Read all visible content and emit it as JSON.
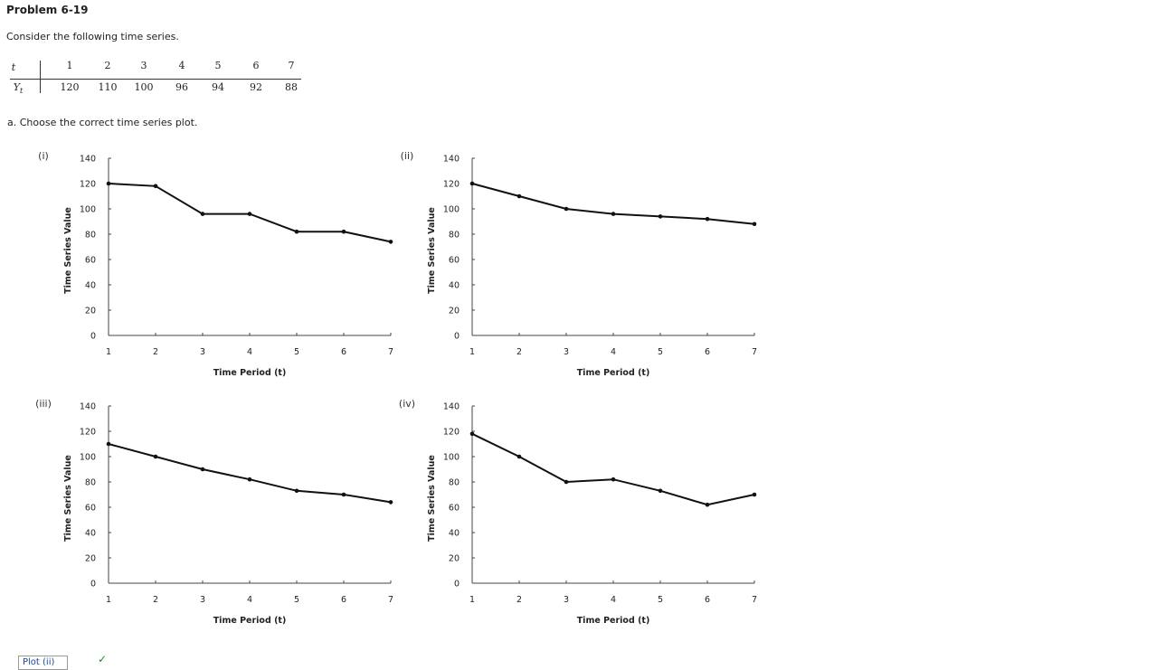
{
  "problem": {
    "title": "Problem 6-19",
    "intro": "Consider the following time series.",
    "question": "a. Choose the correct time series plot."
  },
  "table": {
    "row_t_label": "t",
    "row_y_label": "Y",
    "row_y_subscript": "t",
    "t": [
      "1",
      "2",
      "3",
      "4",
      "5",
      "6",
      "7"
    ],
    "y": [
      "120",
      "110",
      "100",
      "96",
      "94",
      "92",
      "88"
    ]
  },
  "answer": {
    "selected": "Plot (ii)",
    "check_icon": "check-icon"
  },
  "chart_data": [
    {
      "type": "line",
      "label": "(i)",
      "x": [
        1,
        2,
        3,
        4,
        5,
        6,
        7
      ],
      "y": [
        120,
        118,
        96,
        96,
        82,
        82,
        74
      ],
      "xlabel": "Time Period (t)",
      "ylabel": "Time Series Value",
      "xticks": [
        "1",
        "2",
        "3",
        "4",
        "5",
        "6",
        "7"
      ],
      "yticks": [
        "0",
        "20",
        "40",
        "60",
        "80",
        "100",
        "120",
        "140"
      ],
      "ylim": [
        0,
        140
      ],
      "grid": false
    },
    {
      "type": "line",
      "label": "(ii)",
      "x": [
        1,
        2,
        3,
        4,
        5,
        6,
        7
      ],
      "y": [
        120,
        110,
        100,
        96,
        94,
        92,
        88
      ],
      "xlabel": "Time Period (t)",
      "ylabel": "Time Series Value",
      "xticks": [
        "1",
        "2",
        "3",
        "4",
        "5",
        "6",
        "7"
      ],
      "yticks": [
        "0",
        "20",
        "40",
        "60",
        "80",
        "100",
        "120",
        "140"
      ],
      "ylim": [
        0,
        140
      ],
      "grid": false
    },
    {
      "type": "line",
      "label": "(iii)",
      "x": [
        1,
        2,
        3,
        4,
        5,
        6,
        7
      ],
      "y": [
        110,
        100,
        90,
        82,
        73,
        70,
        64
      ],
      "xlabel": "Time Period (t)",
      "ylabel": "Time Series Value",
      "xticks": [
        "1",
        "2",
        "3",
        "4",
        "5",
        "6",
        "7"
      ],
      "yticks": [
        "0",
        "20",
        "40",
        "60",
        "80",
        "100",
        "120",
        "140"
      ],
      "ylim": [
        0,
        140
      ],
      "grid": false
    },
    {
      "type": "line",
      "label": "(iv)",
      "x": [
        1,
        2,
        3,
        4,
        5,
        6,
        7
      ],
      "y": [
        118,
        100,
        80,
        82,
        73,
        62,
        70
      ],
      "xlabel": "Time Period (t)",
      "ylabel": "Time Series Value",
      "xticks": [
        "1",
        "2",
        "3",
        "4",
        "5",
        "6",
        "7"
      ],
      "yticks": [
        "0",
        "20",
        "40",
        "60",
        "80",
        "100",
        "120",
        "140"
      ],
      "ylim": [
        0,
        140
      ],
      "grid": false
    }
  ]
}
